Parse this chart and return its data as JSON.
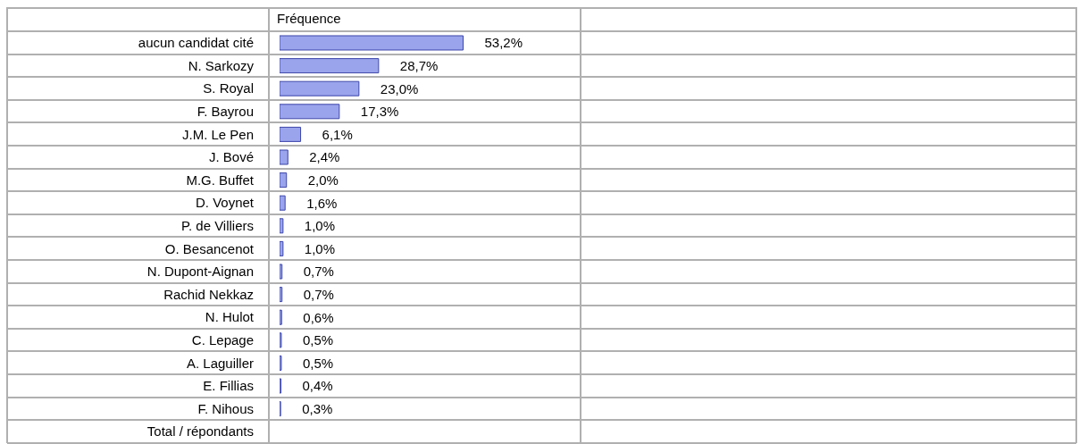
{
  "chart_data": {
    "type": "bar",
    "orientation": "horizontal",
    "title": "Fréquence",
    "categories": [
      "aucun candidat cité",
      "N. Sarkozy",
      "S. Royal",
      "F. Bayrou",
      "J.M. Le Pen",
      "J. Bové",
      "M.G. Buffet",
      "D. Voynet",
      "P. de Villiers",
      "O. Besancenot",
      "N. Dupont-Aignan",
      "Rachid Nekkaz",
      "N. Hulot",
      "C. Lepage",
      "A. Laguiller",
      "E. Fillias",
      "F. Nihous",
      "Total / répondants"
    ],
    "values": [
      53.2,
      28.7,
      23.0,
      17.3,
      6.1,
      2.4,
      2.0,
      1.6,
      1.0,
      1.0,
      0.7,
      0.7,
      0.6,
      0.5,
      0.5,
      0.4,
      0.3,
      null
    ],
    "value_labels": [
      "53,2%",
      "28,7%",
      "23,0%",
      "17,3%",
      "6,1%",
      "2,4%",
      "2,0%",
      "1,6%",
      "1,0%",
      "1,0%",
      "0,7%",
      "0,7%",
      "0,6%",
      "0,5%",
      "0,5%",
      "0,4%",
      "0,3%",
      null
    ],
    "color": "#9aa4ec"
  }
}
